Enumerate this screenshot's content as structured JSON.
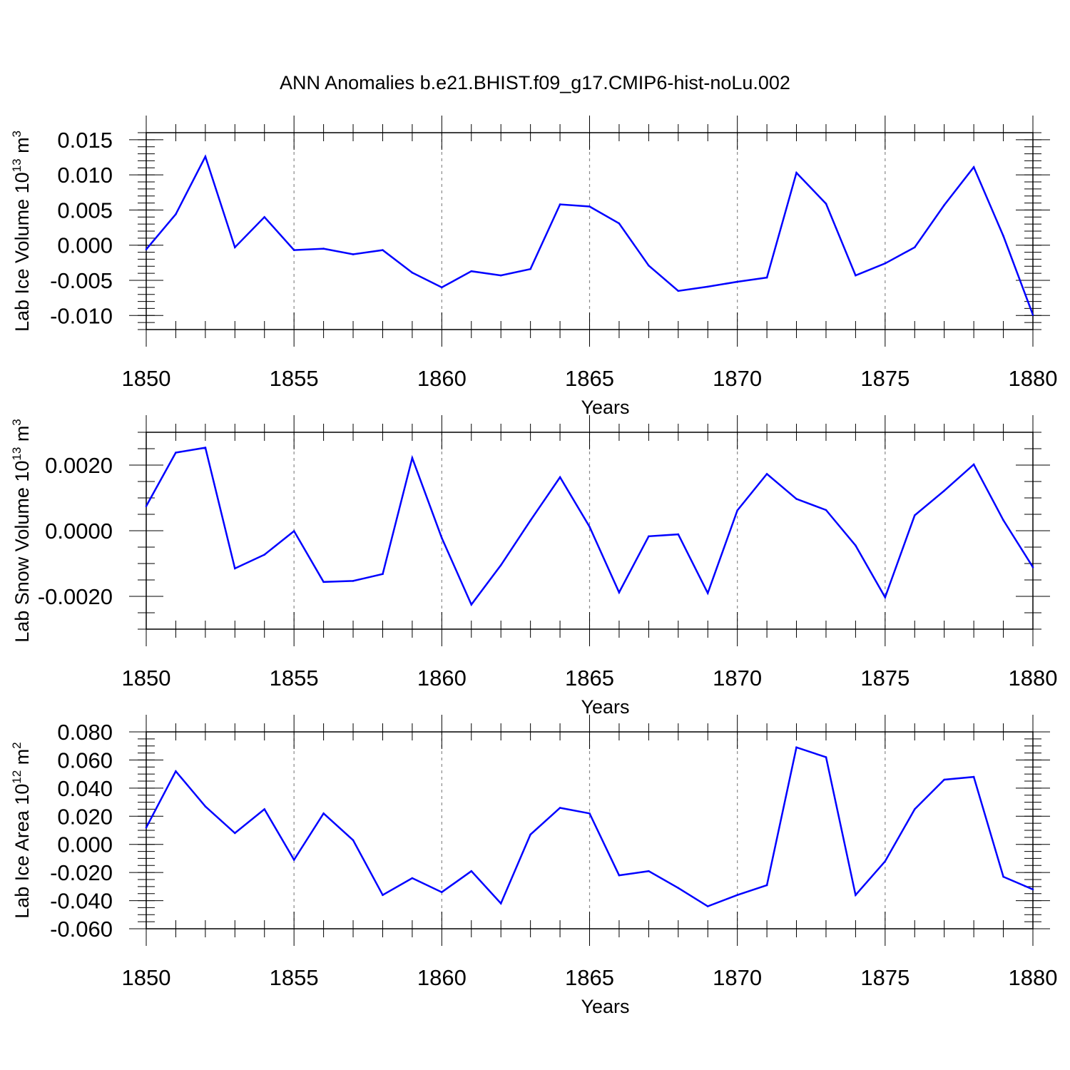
{
  "figure_title": "ANN Anomalies b.e21.BHIST.f09_g17.CMIP6-hist-noLu.002",
  "series_color": "#0000ff",
  "axis_color": "#000000",
  "grid_color": "#888888",
  "chart_data": [
    {
      "type": "line",
      "title": "ANN Anomalies b.e21.BHIST.f09_g17.CMIP6-hist-noLu.002",
      "ylabel_main": "Lab Ice Volume 10",
      "ylabel_exp": "13",
      "ylabel_unit": " m",
      "ylabel_unit_exp": "3",
      "xlabel": "Years",
      "xlim": [
        1850,
        1880
      ],
      "ylim": [
        -0.012,
        0.016
      ],
      "xticks": [
        1850,
        1855,
        1860,
        1865,
        1870,
        1875,
        1880
      ],
      "xtick_labels": [
        "1850",
        "1855",
        "1860",
        "1865",
        "1870",
        "1875",
        "1880"
      ],
      "yticks": [
        -0.01,
        -0.005,
        0.0,
        0.005,
        0.01,
        0.015
      ],
      "ytick_labels": [
        "-0.010",
        "-0.005",
        "0.000",
        "0.005",
        "0.010",
        "0.015"
      ],
      "yminor_step": 0.001,
      "x": [
        1850,
        1851,
        1852,
        1853,
        1854,
        1855,
        1856,
        1857,
        1858,
        1859,
        1860,
        1861,
        1862,
        1863,
        1864,
        1865,
        1866,
        1867,
        1868,
        1869,
        1870,
        1871,
        1872,
        1873,
        1874,
        1875,
        1876,
        1877,
        1878,
        1879,
        1880
      ],
      "values": [
        -0.0006,
        0.0044,
        0.0126,
        -0.0003,
        0.004,
        -0.0007,
        -0.0005,
        -0.0013,
        -0.0007,
        -0.0039,
        -0.006,
        -0.0037,
        -0.0043,
        -0.0034,
        0.0058,
        0.0055,
        0.0031,
        -0.0029,
        -0.0065,
        -0.0059,
        -0.0052,
        -0.0046,
        0.0103,
        0.0059,
        -0.0043,
        -0.0026,
        -0.0003,
        0.0057,
        0.0111,
        0.0013,
        -0.0099
      ]
    },
    {
      "type": "line",
      "ylabel_main": "Lab Snow Volume 10",
      "ylabel_exp": "13",
      "ylabel_unit": " m",
      "ylabel_unit_exp": "3",
      "xlabel": "Years",
      "xlim": [
        1850,
        1880
      ],
      "ylim": [
        -0.003,
        0.003
      ],
      "xticks": [
        1850,
        1855,
        1860,
        1865,
        1870,
        1875,
        1880
      ],
      "xtick_labels": [
        "1850",
        "1855",
        "1860",
        "1865",
        "1870",
        "1875",
        "1880"
      ],
      "yticks": [
        -0.002,
        0.0,
        0.002
      ],
      "ytick_labels": [
        "-0.0020",
        "0.0000",
        "0.0020"
      ],
      "yminor_step": 0.0005,
      "x": [
        1850,
        1851,
        1852,
        1853,
        1854,
        1855,
        1856,
        1857,
        1858,
        1859,
        1860,
        1861,
        1862,
        1863,
        1864,
        1865,
        1866,
        1867,
        1868,
        1869,
        1870,
        1871,
        1872,
        1873,
        1874,
        1875,
        1876,
        1877,
        1878,
        1879,
        1880
      ],
      "values": [
        0.00075,
        0.00238,
        0.00253,
        -0.00115,
        -0.00073,
        -1e-05,
        -0.00156,
        -0.00153,
        -0.00132,
        0.00222,
        -0.00022,
        -0.00225,
        -0.00105,
        0.00031,
        0.00163,
        0.00012,
        -0.00188,
        -0.00017,
        -0.00011,
        -0.0019,
        0.00062,
        0.00173,
        0.00097,
        0.00063,
        -0.00045,
        -0.00203,
        0.00047,
        0.00122,
        0.00202,
        0.00032,
        -0.00111
      ]
    },
    {
      "type": "line",
      "ylabel_main": "Lab Ice Area 10",
      "ylabel_exp": "12",
      "ylabel_unit": " m",
      "ylabel_unit_exp": "2",
      "xlabel": "Years",
      "xlim": [
        1850,
        1880
      ],
      "ylim": [
        -0.06,
        0.08
      ],
      "xticks": [
        1850,
        1855,
        1860,
        1865,
        1870,
        1875,
        1880
      ],
      "xtick_labels": [
        "1850",
        "1855",
        "1860",
        "1865",
        "1870",
        "1875",
        "1880"
      ],
      "yticks": [
        -0.06,
        -0.04,
        -0.02,
        0.0,
        0.02,
        0.04,
        0.06,
        0.08
      ],
      "ytick_labels": [
        "-0.060",
        "-0.040",
        "-0.020",
        "0.000",
        "0.020",
        "0.040",
        "0.060",
        "0.080"
      ],
      "yminor_step": 0.005,
      "x": [
        1850,
        1851,
        1852,
        1853,
        1854,
        1855,
        1856,
        1857,
        1858,
        1859,
        1860,
        1861,
        1862,
        1863,
        1864,
        1865,
        1866,
        1867,
        1868,
        1869,
        1870,
        1871,
        1872,
        1873,
        1874,
        1875,
        1876,
        1877,
        1878,
        1879,
        1880
      ],
      "values": [
        0.012,
        0.052,
        0.027,
        0.008,
        0.025,
        -0.011,
        0.022,
        0.003,
        -0.036,
        -0.024,
        -0.034,
        -0.019,
        -0.042,
        0.007,
        0.026,
        0.022,
        -0.022,
        -0.019,
        -0.031,
        -0.044,
        -0.036,
        -0.029,
        0.069,
        0.062,
        -0.036,
        -0.012,
        0.025,
        0.046,
        0.048,
        -0.023,
        -0.032
      ]
    }
  ]
}
